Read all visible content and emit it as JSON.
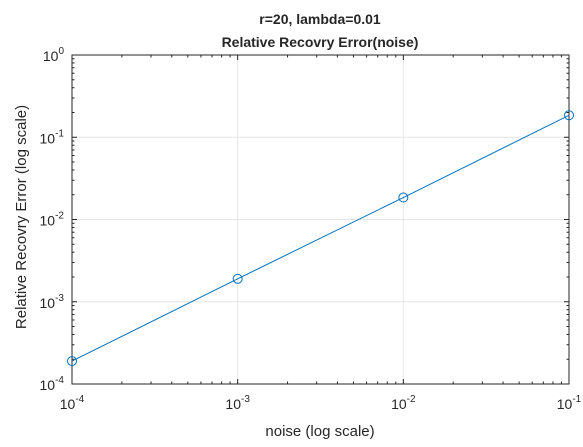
{
  "chart_data": {
    "type": "line",
    "title": "r=20, lambda=0.01",
    "subtitle": "Relative Recovry Error(noise)",
    "xlabel": "noise (log scale)",
    "ylabel": "Relative Recovry Error (log scale)",
    "xscale": "log",
    "yscale": "log",
    "xlim": [
      0.0001,
      0.1
    ],
    "ylim": [
      0.0001,
      1
    ],
    "grid": true,
    "legend": "none",
    "x_ticks": [
      {
        "value": 0.0001,
        "base": "10",
        "exp": "-4"
      },
      {
        "value": 0.001,
        "base": "10",
        "exp": "-3"
      },
      {
        "value": 0.01,
        "base": "10",
        "exp": "-2"
      },
      {
        "value": 0.1,
        "base": "10",
        "exp": "-1"
      }
    ],
    "y_ticks": [
      {
        "value": 0.0001,
        "base": "10",
        "exp": "-4"
      },
      {
        "value": 0.001,
        "base": "10",
        "exp": "-3"
      },
      {
        "value": 0.01,
        "base": "10",
        "exp": "-2"
      },
      {
        "value": 0.1,
        "base": "10",
        "exp": "-1"
      },
      {
        "value": 1,
        "base": "10",
        "exp": "0"
      }
    ],
    "series": [
      {
        "color": "#0072BD",
        "marker": "circle",
        "x": [
          0.0001,
          0.001,
          0.01,
          0.1
        ],
        "y": [
          0.00019,
          0.0019,
          0.0185,
          0.185
        ]
      }
    ]
  }
}
